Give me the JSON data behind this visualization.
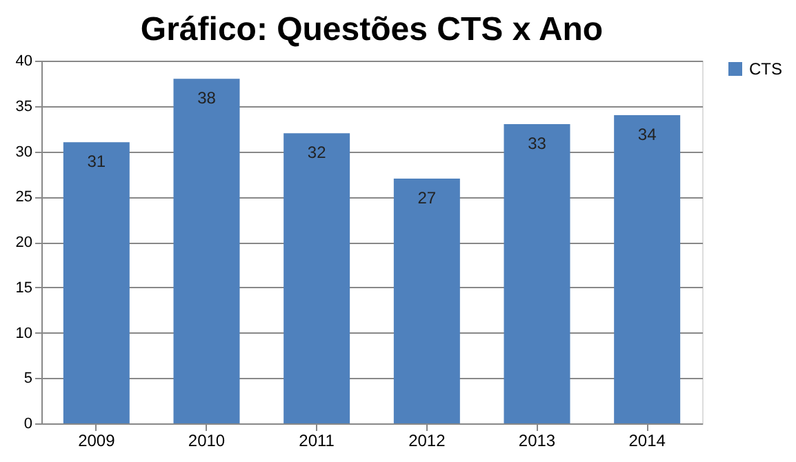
{
  "chart_data": {
    "type": "bar",
    "title": "Gráfico: Questões CTS x Ano",
    "categories": [
      "2009",
      "2010",
      "2011",
      "2012",
      "2013",
      "2014"
    ],
    "series": [
      {
        "name": "CTS",
        "color": "#4f81bd",
        "values": [
          31,
          38,
          32,
          27,
          33,
          34
        ]
      }
    ],
    "ylim": [
      0,
      40
    ],
    "yticks": [
      0,
      5,
      10,
      15,
      20,
      25,
      30,
      35,
      40
    ],
    "grid": "y",
    "legend": "right",
    "data_labels": true
  }
}
